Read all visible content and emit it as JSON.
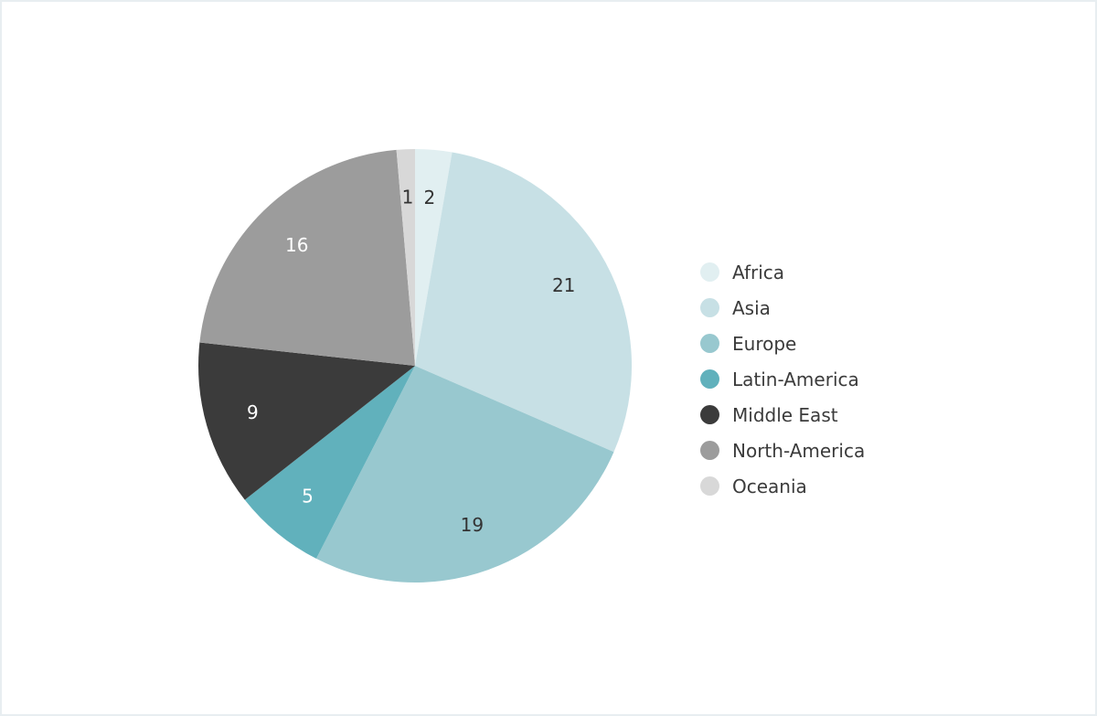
{
  "chart_data": {
    "type": "pie",
    "title": "",
    "categories": [
      "Africa",
      "Asia",
      "Europe",
      "Latin-America",
      "Middle East",
      "North-America",
      "Oceania"
    ],
    "values": [
      2,
      21,
      19,
      5,
      9,
      16,
      1
    ],
    "colors": [
      "#e1eff1",
      "#c7e0e5",
      "#98c8cf",
      "#61b1bc",
      "#3b3b3b",
      "#9c9c9c",
      "#d8d8d8"
    ],
    "label_colors": [
      "#333333",
      "#333333",
      "#333333",
      "#ffffff",
      "#ffffff",
      "#ffffff",
      "#333333"
    ],
    "start_angle": "top",
    "direction": "clockwise",
    "legend_position": "right"
  }
}
